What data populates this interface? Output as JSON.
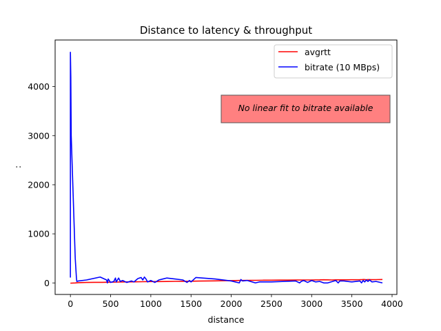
{
  "chart_data": {
    "type": "line",
    "title": "Distance to latency & throughput",
    "xlabel": "distance",
    "ylabel": ":",
    "xlim": [
      -190,
      4060
    ],
    "ylim": [
      -235,
      4950
    ],
    "xticks": [
      0,
      500,
      1000,
      1500,
      2000,
      2500,
      3000,
      3500,
      4000
    ],
    "yticks": [
      0,
      1000,
      2000,
      3000,
      4000
    ],
    "grid": false,
    "legend_position": "top-right",
    "annotation": {
      "text": "No linear fit to bitrate available",
      "background": "#ff8080"
    },
    "series": [
      {
        "name": "avgrtt",
        "color": "#ff0000",
        "x": [
          0,
          60,
          100,
          200,
          300,
          400,
          500,
          600,
          700,
          800,
          900,
          1000,
          1100,
          1200,
          1300,
          1400,
          1500,
          1600,
          1700,
          1800,
          1900,
          2000,
          2100,
          2200,
          2300,
          2400,
          2500,
          2600,
          2700,
          2800,
          2900,
          3000,
          3100,
          3150,
          3200,
          3250,
          3300,
          3400,
          3500,
          3550,
          3600,
          3630,
          3650,
          3680,
          3700,
          3750,
          3800,
          3880
        ],
        "y": [
          -5,
          0,
          5,
          10,
          12,
          12,
          15,
          18,
          20,
          22,
          25,
          27,
          28,
          30,
          32,
          33,
          35,
          38,
          40,
          42,
          45,
          47,
          50,
          52,
          53,
          55,
          56,
          57,
          58,
          59,
          60,
          60,
          62,
          65,
          62,
          60,
          62,
          63,
          64,
          65,
          66,
          68,
          70,
          65,
          68,
          66,
          67,
          70
        ]
      },
      {
        "name": "bitrate (10 MBps)",
        "color": "#0000ff",
        "x": [
          0,
          0,
          5,
          10,
          60,
          75,
          80,
          100,
          200,
          370,
          450,
          460,
          470,
          500,
          540,
          560,
          570,
          600,
          620,
          650,
          700,
          760,
          790,
          840,
          880,
          900,
          920,
          940,
          960,
          1000,
          1050,
          1100,
          1150,
          1200,
          1300,
          1400,
          1450,
          1480,
          1500,
          1560,
          1800,
          2000,
          2100,
          2120,
          2140,
          2200,
          2300,
          2350,
          2500,
          2800,
          2850,
          2870,
          2900,
          2950,
          3000,
          3050,
          3100,
          3150,
          3200,
          3300,
          3330,
          3350,
          3400,
          3500,
          3600,
          3620,
          3640,
          3660,
          3680,
          3700,
          3720,
          3750,
          3800,
          3880
        ],
        "y": [
          110,
          4700,
          4200,
          3000,
          500,
          100,
          30,
          40,
          60,
          120,
          60,
          0,
          80,
          10,
          30,
          100,
          20,
          100,
          30,
          50,
          10,
          40,
          20,
          90,
          110,
          60,
          120,
          80,
          20,
          50,
          10,
          60,
          80,
          100,
          80,
          60,
          10,
          50,
          20,
          110,
          80,
          40,
          0,
          70,
          40,
          50,
          0,
          20,
          20,
          40,
          0,
          30,
          50,
          10,
          50,
          20,
          30,
          0,
          0,
          50,
          0,
          40,
          40,
          20,
          40,
          0,
          50,
          20,
          60,
          30,
          60,
          20,
          30,
          0
        ]
      }
    ]
  }
}
